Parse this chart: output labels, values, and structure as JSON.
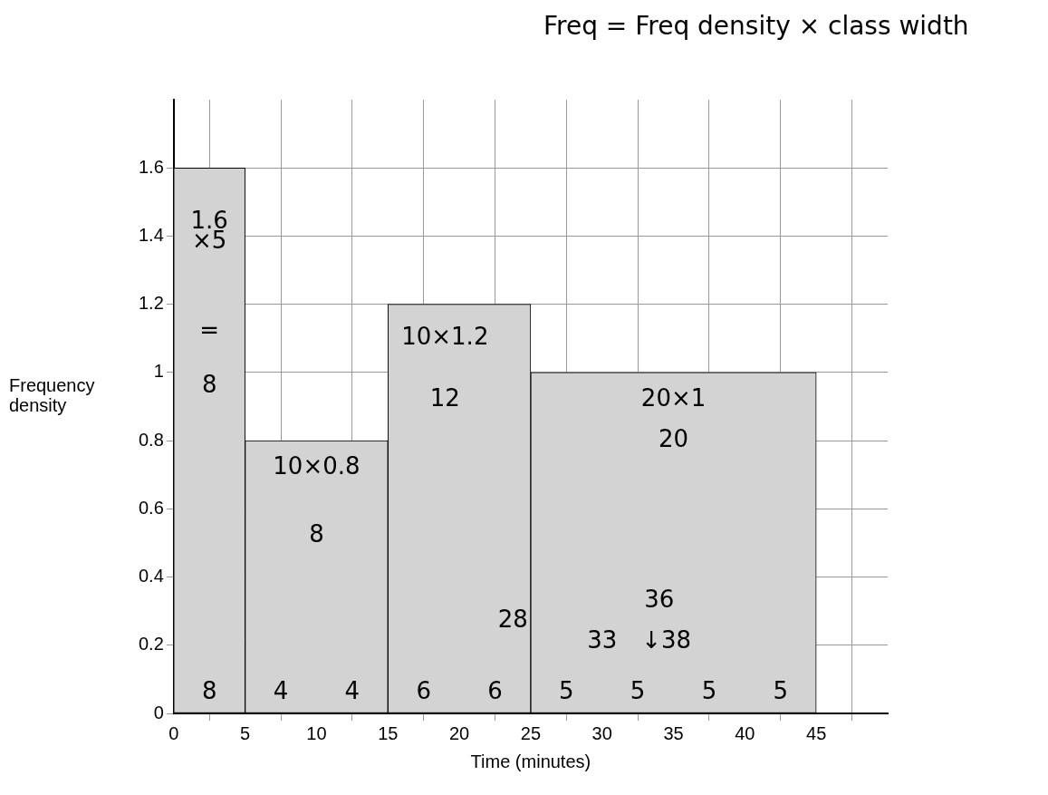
{
  "chart_data": {
    "type": "histogram",
    "xlabel": "Time (minutes)",
    "ylabel": "Frequency density",
    "bins": [
      0,
      5,
      15,
      25,
      45
    ],
    "values": [
      1.6,
      0.8,
      1.2,
      1.0
    ],
    "color": "#d3d3d3",
    "xlim": [
      0,
      50
    ],
    "ylim": [
      0,
      1.8
    ],
    "xticks": [
      0,
      5,
      10,
      15,
      20,
      25,
      30,
      35,
      40,
      45
    ],
    "yticks": [
      0,
      0.2,
      0.4,
      0.6,
      0.8,
      1.0,
      1.2,
      1.4,
      1.6
    ],
    "grid": true,
    "annotations": [
      "Freq = Freq density × class width",
      "1.6",
      "×5",
      "=",
      "8",
      "10×0.8",
      "8",
      "10×1.2",
      "12",
      "20×1",
      "20",
      "8",
      "4",
      "4",
      "6",
      "6",
      "5",
      "5",
      "5",
      "5",
      "28",
      "33",
      "36",
      "↓38"
    ]
  }
}
